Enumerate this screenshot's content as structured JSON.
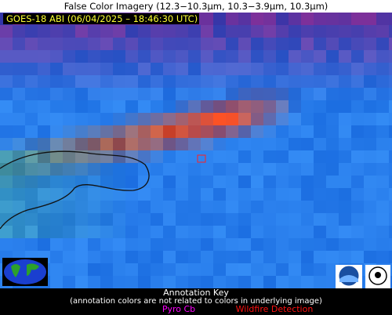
{
  "header": {
    "title": "False Color Imagery (12.3−10.3µm, 10.3−3.9µm, 10.3µm)"
  },
  "image": {
    "timestamp_label": "GOES-18 ABI (06/04/2025 – 18:46:30 UTC)"
  },
  "annotation_key": {
    "title": "Annotation Key",
    "note": "(annotation colors are not related to colors in underlying image)",
    "items": [
      "Pyro Cb",
      "Wildfire Detection"
    ]
  }
}
